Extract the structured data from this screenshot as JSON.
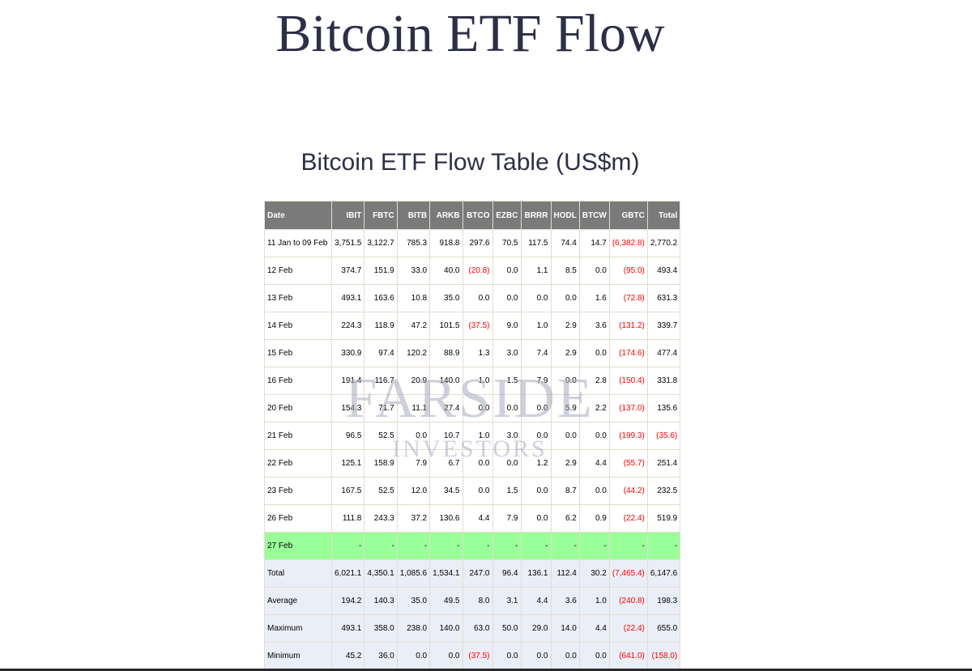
{
  "page": {
    "title": "Bitcoin ETF Flow",
    "subtitle": "Bitcoin ETF Flow Table (US$m)"
  },
  "watermark": {
    "main": "FARSIDE",
    "sub": "INVESTORS"
  },
  "table": {
    "columns": [
      "Date",
      "IBIT",
      "FBTC",
      "BITB",
      "ARKB",
      "BTCO",
      "EZBC",
      "BRRR",
      "HODL",
      "BTCW",
      "GBTC",
      "Total"
    ],
    "rows": [
      [
        "11 Jan to 09 Feb",
        "3,751.5",
        "3,122.7",
        "785.3",
        "918.8",
        "297.6",
        "70.5",
        "117.5",
        "74.4",
        "14.7",
        "(6,382.8)",
        "2,770.2"
      ],
      [
        "12 Feb",
        "374.7",
        "151.9",
        "33.0",
        "40.0",
        "(20.8)",
        "0.0",
        "1.1",
        "8.5",
        "0.0",
        "(95.0)",
        "493.4"
      ],
      [
        "13 Feb",
        "493.1",
        "163.6",
        "10.8",
        "35.0",
        "0.0",
        "0.0",
        "0.0",
        "0.0",
        "1.6",
        "(72.8)",
        "631.3"
      ],
      [
        "14 Feb",
        "224.3",
        "118.9",
        "47.2",
        "101.5",
        "(37.5)",
        "9.0",
        "1.0",
        "2.9",
        "3.6",
        "(131.2)",
        "339.7"
      ],
      [
        "15 Feb",
        "330.9",
        "97.4",
        "120.2",
        "88.9",
        "1.3",
        "3.0",
        "7.4",
        "2.9",
        "0.0",
        "(174.6)",
        "477.4"
      ],
      [
        "16 Feb",
        "191.4",
        "116.7",
        "20.9",
        "140.0",
        "1.0",
        "1.5",
        "7.9",
        "0.0",
        "2.8",
        "(150.4)",
        "331.8"
      ],
      [
        "20 Feb",
        "154.3",
        "71.7",
        "11.1",
        "27.4",
        "0.0",
        "0.0",
        "0.0",
        "5.9",
        "2.2",
        "(137.0)",
        "135.6"
      ],
      [
        "21 Feb",
        "96.5",
        "52.5",
        "0.0",
        "10.7",
        "1.0",
        "3.0",
        "0.0",
        "0.0",
        "0.0",
        "(199.3)",
        "(35.6)"
      ],
      [
        "22 Feb",
        "125.1",
        "158.9",
        "7.9",
        "6.7",
        "0.0",
        "0.0",
        "1.2",
        "2.9",
        "4.4",
        "(55.7)",
        "251.4"
      ],
      [
        "23 Feb",
        "167.5",
        "52.5",
        "12.0",
        "34.5",
        "0.0",
        "1.5",
        "0.0",
        "8.7",
        "0.0",
        "(44.2)",
        "232.5"
      ],
      [
        "26 Feb",
        "111.8",
        "243.3",
        "37.2",
        "130.6",
        "4.4",
        "7.9",
        "0.0",
        "6.2",
        "0.9",
        "(22.4)",
        "519.9"
      ],
      [
        "27 Feb",
        "-",
        "-",
        "-",
        "-",
        "-",
        "-",
        "-",
        "-",
        "-",
        "-",
        "-"
      ]
    ],
    "summary": [
      [
        "Total",
        "6,021.1",
        "4,350.1",
        "1,085.6",
        "1,534.1",
        "247.0",
        "96.4",
        "136.1",
        "112.4",
        "30.2",
        "(7,465.4)",
        "6,147.6"
      ],
      [
        "Average",
        "194.2",
        "140.3",
        "35.0",
        "49.5",
        "8.0",
        "3.1",
        "4.4",
        "3.6",
        "1.0",
        "(240.8)",
        "198.3"
      ],
      [
        "Maximum",
        "493.1",
        "358.0",
        "238.0",
        "140.0",
        "63.0",
        "50.0",
        "29.0",
        "14.0",
        "4.4",
        "(22.4)",
        "655.0"
      ],
      [
        "Minimum",
        "45.2",
        "36.0",
        "0.0",
        "0.0",
        "(37.5)",
        "0.0",
        "0.0",
        "0.0",
        "0.0",
        "(641.0)",
        "(158.0)"
      ]
    ]
  },
  "colors": {
    "header_bg": "#7a7a7a",
    "highlight_row_bg": "#99ff99",
    "summary_row_bg": "#eaeef7",
    "negative_text": "#ff0000",
    "title_text": "#2c2f45"
  }
}
